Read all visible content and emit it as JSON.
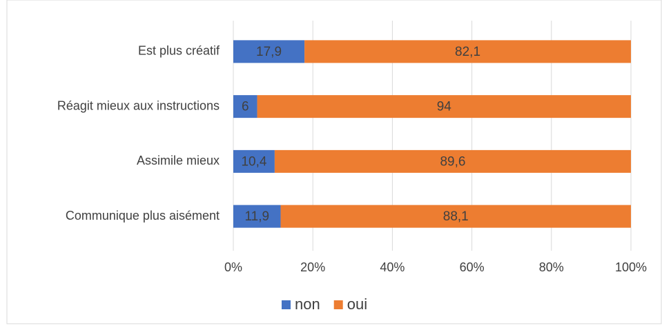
{
  "chart_data": {
    "type": "stacked-bar-horizontal",
    "categories": [
      "Est plus créatif",
      "Réagit mieux aux instructions",
      "Assimile mieux",
      "Communique plus aisément"
    ],
    "series": [
      {
        "name": "non",
        "color": "#4472c4",
        "values": [
          17.9,
          6,
          10.4,
          11.9
        ],
        "value_labels": [
          "17,9",
          "6",
          "10,4",
          "11,9"
        ]
      },
      {
        "name": "oui",
        "color": "#ed7d31",
        "values": [
          82.1,
          94,
          89.6,
          88.1
        ],
        "value_labels": [
          "82,1",
          "94",
          "89,6",
          "88,1"
        ]
      }
    ],
    "xlim": [
      0,
      100
    ],
    "xticks": [
      {
        "value": 0,
        "label": "0%"
      },
      {
        "value": 20,
        "label": "20%"
      },
      {
        "value": 40,
        "label": "40%"
      },
      {
        "value": 60,
        "label": "60%"
      },
      {
        "value": 80,
        "label": "80%"
      },
      {
        "value": 100,
        "label": "100%"
      }
    ],
    "grid": true,
    "legend": "bottom"
  }
}
